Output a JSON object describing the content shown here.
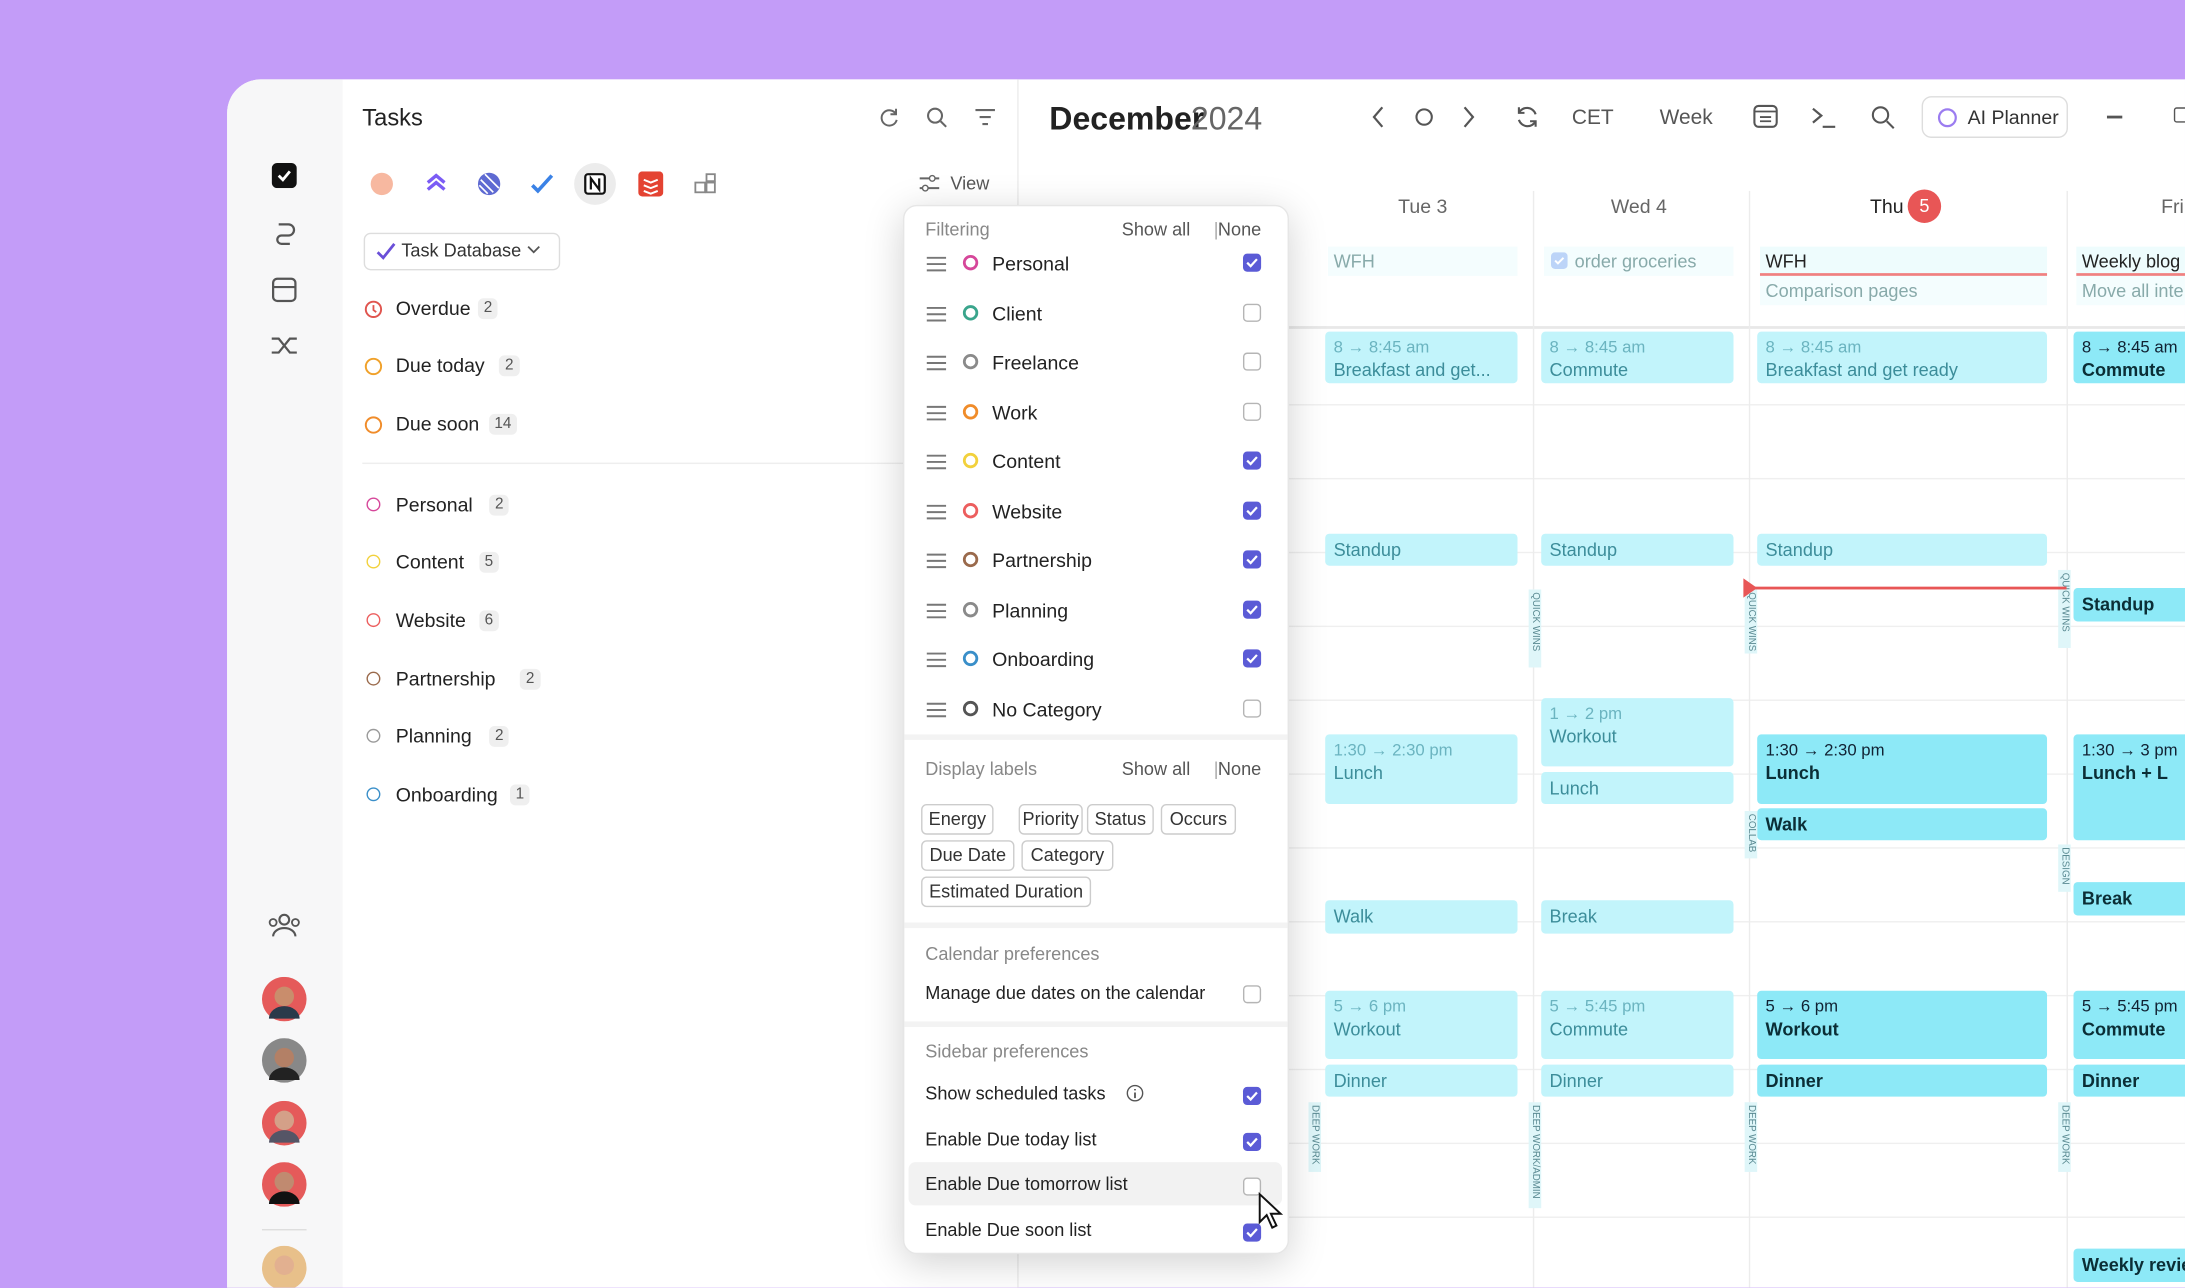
{
  "sidebar": {
    "title": "Tasks",
    "view": "View",
    "database": "Task Database",
    "smart_lists": [
      {
        "name": "Overdue",
        "count": 2,
        "color": "#e0554f"
      },
      {
        "name": "Due today",
        "count": 2,
        "color": "#f0a12a"
      },
      {
        "name": "Due soon",
        "count": 14,
        "color": "#f08c2a"
      }
    ],
    "lists": [
      {
        "name": "Personal",
        "count": 2,
        "color": "#d6479a"
      },
      {
        "name": "Content",
        "count": 5,
        "color": "#f2d13c"
      },
      {
        "name": "Website",
        "count": 6,
        "color": "#ec5e5e"
      },
      {
        "name": "Partnership",
        "count": 2,
        "color": "#9a6a4c"
      },
      {
        "name": "Planning",
        "count": 2,
        "color": "#9a9a9a"
      },
      {
        "name": "Onboarding",
        "count": 1,
        "color": "#3a8fc9"
      }
    ]
  },
  "calendar": {
    "month": "December",
    "year": "2024",
    "timezone": "CET",
    "range": "Week",
    "ai_button": "AI Planner",
    "days": [
      {
        "label": "Tue 3"
      },
      {
        "label": "Wed 4"
      },
      {
        "label": "Thu",
        "badge": "5"
      },
      {
        "label": "Fri"
      }
    ],
    "all_day": [
      {
        "day": 0,
        "title": "WFH"
      },
      {
        "day": 1,
        "title": "order groceries"
      },
      {
        "day": 2,
        "title": "WFH"
      },
      {
        "day": 2,
        "title": "Comparison pages"
      },
      {
        "day": 3,
        "title": "Weekly blog"
      },
      {
        "day": 3,
        "title": "Move all inte"
      }
    ],
    "events": [
      {
        "day": 0,
        "time": "8 → 8:45 am",
        "title": "Breakfast and get...",
        "faded": true
      },
      {
        "day": 0,
        "title": "Standup",
        "faded": true
      },
      {
        "day": 0,
        "time": "1:30 → 2:30 pm",
        "title": "Lunch",
        "faded": true
      },
      {
        "day": 0,
        "title": "Walk",
        "faded": true
      },
      {
        "day": 0,
        "time": "5 → 6 pm",
        "title": "Workout",
        "faded": true
      },
      {
        "day": 0,
        "title": "Dinner",
        "faded": true
      },
      {
        "day": 1,
        "time": "8 → 8:45 am",
        "title": "Commute",
        "faded": true
      },
      {
        "day": 1,
        "title": "Standup",
        "faded": true
      },
      {
        "day": 1,
        "time": "1 → 2 pm",
        "title": "Workout",
        "faded": true
      },
      {
        "day": 1,
        "title": "Lunch",
        "faded": true
      },
      {
        "day": 1,
        "title": "Break",
        "faded": true
      },
      {
        "day": 1,
        "time": "5 → 5:45 pm",
        "title": "Commute",
        "faded": true
      },
      {
        "day": 1,
        "title": "Dinner",
        "faded": true
      },
      {
        "day": 2,
        "time": "8 → 8:45 am",
        "title": "Breakfast and get ready",
        "faded": true
      },
      {
        "day": 2,
        "title": "Standup",
        "faded": true
      },
      {
        "day": 2,
        "time": "1:30 → 2:30 pm",
        "title": "Lunch",
        "faded": false
      },
      {
        "day": 2,
        "title": "Walk",
        "faded": false
      },
      {
        "day": 2,
        "time": "5 → 6 pm",
        "title": "Workout",
        "faded": false
      },
      {
        "day": 2,
        "title": "Dinner",
        "faded": false
      },
      {
        "day": 3,
        "time": "8 → 8:45 am",
        "title": "Commute",
        "faded": false
      },
      {
        "day": 3,
        "title": "Standup",
        "faded": false
      },
      {
        "day": 3,
        "time": "1:30 → 3 pm",
        "title": "Lunch + L",
        "faded": false
      },
      {
        "day": 3,
        "title": "Break",
        "faded": false
      },
      {
        "day": 3,
        "time": "5 → 5:45 pm",
        "title": "Commute",
        "faded": false
      },
      {
        "day": 3,
        "title": "Dinner",
        "faded": false
      },
      {
        "day": 3,
        "title": "Weekly revie",
        "faded": false
      }
    ],
    "blocks": [
      "QUICK WINS",
      "QUICK WINS",
      "QUICK WINS",
      "COLLAB",
      "DESIGN",
      "DEEP WORK",
      "DEEP WORK/ADMIN",
      "DEEP WORK",
      "DEEP WORK"
    ]
  },
  "filter_panel": {
    "filtering": "Filtering",
    "show_all": "Show all",
    "separator": "|",
    "none": "None",
    "categories": [
      {
        "name": "Personal",
        "color": "#d6479a",
        "checked": true
      },
      {
        "name": "Client",
        "color": "#3aa58c",
        "checked": false
      },
      {
        "name": "Freelance",
        "color": "#8a8a8a",
        "checked": false
      },
      {
        "name": "Work",
        "color": "#f08c2a",
        "checked": false
      },
      {
        "name": "Content",
        "color": "#f2d13c",
        "checked": true
      },
      {
        "name": "Website",
        "color": "#ec5e5e",
        "checked": true
      },
      {
        "name": "Partnership",
        "color": "#9a6a4c",
        "checked": true
      },
      {
        "name": "Planning",
        "color": "#8a8a8a",
        "checked": true
      },
      {
        "name": "Onboarding",
        "color": "#3a8fc9",
        "checked": true
      },
      {
        "name": "No Category",
        "color": "#555555",
        "checked": false
      }
    ],
    "display_labels": "Display labels",
    "labels": [
      "Energy",
      "Priority",
      "Status",
      "Occurs",
      "Due Date",
      "Category",
      "Estimated Duration"
    ],
    "calendar_preferences": "Calendar preferences",
    "calendar_options": [
      {
        "name": "Manage due dates on the calendar",
        "checked": false
      }
    ],
    "sidebar_preferences": "Sidebar preferences",
    "sidebar_options": [
      {
        "name": "Show scheduled tasks",
        "checked": true
      },
      {
        "name": "Enable Due today list",
        "checked": true
      },
      {
        "name": "Enable Due tomorrow list",
        "checked": false
      },
      {
        "name": "Enable Due soon list",
        "checked": true
      }
    ]
  }
}
